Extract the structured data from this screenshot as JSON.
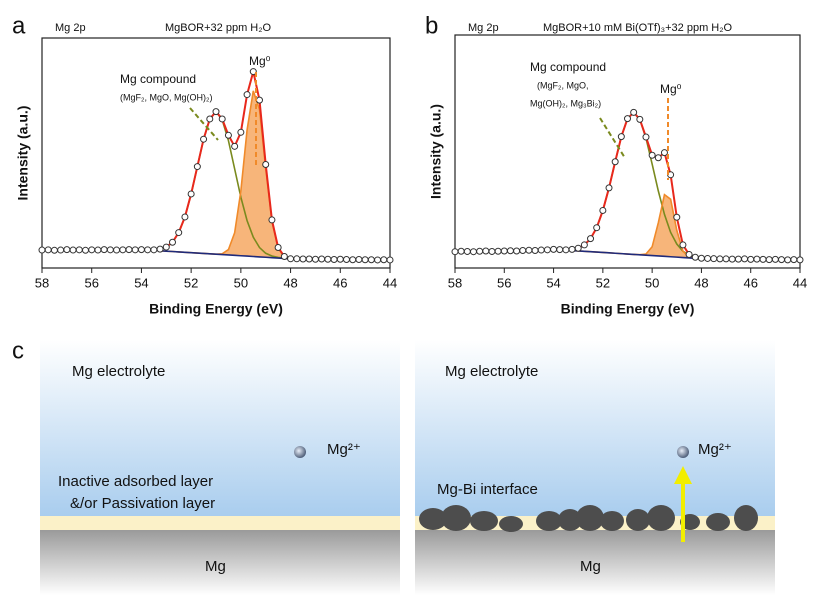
{
  "chart_data": [
    {
      "type": "scatter",
      "panel_label": "a",
      "label": "Mg 2p",
      "title": "MgBOR+32 ppm H₂O",
      "xlabel": "Binding Energy (eV)",
      "ylabel": "Intensity (a.u.)",
      "annotations": [
        "Mg compound",
        "(MgF₂, MgO, Mg(OH)₂)",
        "Mg⁰"
      ],
      "xlim": [
        58,
        44
      ],
      "xticks": [
        58,
        56,
        54,
        52,
        50,
        48,
        46,
        44
      ],
      "ylim": [
        0,
        100
      ],
      "x": [
        58,
        57.75,
        57.5,
        57.25,
        57,
        56.75,
        56.5,
        56.25,
        56,
        55.75,
        55.5,
        55.25,
        55,
        54.75,
        54.5,
        54.25,
        54,
        53.75,
        53.5,
        53.25,
        53,
        52.75,
        52.5,
        52.25,
        52,
        51.75,
        51.5,
        51.25,
        51,
        50.75,
        50.5,
        50.25,
        50,
        49.75,
        49.5,
        49.25,
        49,
        48.75,
        48.5,
        48.25,
        48,
        47.75,
        47.5,
        47.25,
        47,
        46.75,
        46.5,
        46.25,
        46,
        45.75,
        45.5,
        45.25,
        45,
        44.75,
        44.5,
        44.25,
        44
      ],
      "values": [
        7.8,
        7.9,
        7.7,
        7.8,
        8.0,
        7.8,
        7.9,
        7.7,
        7.9,
        7.8,
        8.0,
        7.9,
        7.8,
        7.9,
        8.0,
        7.9,
        8.0,
        7.9,
        7.9,
        8.2,
        9.1,
        11.2,
        15.4,
        22.2,
        32.2,
        44.1,
        56.0,
        64.8,
        68.0,
        64.8,
        57.7,
        52.9,
        59.0,
        75.4,
        85.4,
        73.0,
        45.0,
        20.9,
        8.9,
        5.0,
        4.0,
        4.0,
        3.9,
        3.9,
        3.8,
        3.9,
        3.8,
        3.7,
        3.8,
        3.7,
        3.6,
        3.7,
        3.6,
        3.6,
        3.5,
        3.6,
        3.5
      ],
      "marker_color": "#333333",
      "fit_x": [
        54,
        53.75,
        53.5,
        53.25,
        53,
        52.75,
        52.5,
        52.25,
        52,
        51.75,
        51.5,
        51.25,
        51,
        50.75,
        50.5,
        50.25,
        50,
        49.75,
        49.5,
        49.25,
        49,
        48.75,
        48.5,
        48.25,
        48
      ],
      "fits": [
        {
          "color": "#7a8a1e",
          "values": [
            8.0,
            7.9,
            7.9,
            8.2,
            9.1,
            11.2,
            15.4,
            22.2,
            32.2,
            44.1,
            56.0,
            64.8,
            68.0,
            64.4,
            55.4,
            43.1,
            30.8,
            20.6,
            13.4,
            8.9,
            6.4,
            5.2,
            4.6,
            4.2,
            4.0
          ]
        },
        {
          "color": "#f08a2a",
          "fill": "#f7b57a",
          "values": [
            8.0,
            7.83,
            7.67,
            7.5,
            7.33,
            7.17,
            7.0,
            6.83,
            6.67,
            6.5,
            6.33,
            6.17,
            6.0,
            6.2,
            8.0,
            15.3,
            33.5,
            60.0,
            77.0,
            68.9,
            43.3,
            20.2,
            8.6,
            5.0,
            4.0
          ]
        },
        {
          "color": "#1f2a7a",
          "values": [
            8.0,
            7.83,
            7.67,
            7.5,
            7.33,
            7.17,
            7.0,
            6.83,
            6.67,
            6.5,
            6.33,
            6.17,
            6.0,
            5.83,
            5.67,
            5.5,
            5.33,
            5.17,
            5.0,
            4.83,
            4.67,
            4.5,
            4.33,
            4.17,
            4.0
          ]
        },
        {
          "color": "#e8281c",
          "values": [
            8.0,
            7.9,
            7.9,
            8.2,
            9.1,
            11.2,
            15.4,
            22.2,
            32.2,
            44.1,
            56.0,
            64.8,
            68.0,
            64.8,
            57.7,
            52.9,
            59.0,
            75.4,
            85.4,
            73.0,
            45.0,
            20.9,
            8.9,
            5.0,
            4.0
          ]
        }
      ]
    },
    {
      "type": "scatter",
      "panel_label": "b",
      "label": "Mg 2p",
      "title": "MgBOR+10 mM Bi(OTf)₃+32 ppm H₂O",
      "xlabel": "Binding Energy (eV)",
      "ylabel": "Intensity (a.u.)",
      "annotations": [
        "Mg compound",
        "(MgF₂, MgO,",
        "Mg(OH)₂, Mg₃Bi₂)",
        "Mg⁰"
      ],
      "xlim": [
        58,
        44
      ],
      "xticks": [
        58,
        56,
        54,
        52,
        50,
        48,
        46,
        44
      ],
      "ylim": [
        0,
        100
      ],
      "x": [
        58,
        57.75,
        57.5,
        57.25,
        57,
        56.75,
        56.5,
        56.25,
        56,
        55.75,
        55.5,
        55.25,
        55,
        54.75,
        54.5,
        54.25,
        54,
        53.75,
        53.5,
        53.25,
        53,
        52.75,
        52.5,
        52.25,
        52,
        51.75,
        51.5,
        51.25,
        51,
        50.75,
        50.5,
        50.25,
        50,
        49.75,
        49.5,
        49.25,
        49,
        48.75,
        48.5,
        48.25,
        48,
        47.75,
        47.5,
        47.25,
        47,
        46.75,
        46.5,
        46.25,
        46,
        45.75,
        45.5,
        45.25,
        45,
        44.75,
        44.5,
        44.25,
        44
      ],
      "values": [
        7.0,
        7.2,
        7.1,
        7.0,
        7.2,
        7.3,
        7.1,
        7.2,
        7.3,
        7.4,
        7.3,
        7.5,
        7.6,
        7.5,
        7.7,
        7.8,
        8.0,
        7.9,
        7.8,
        8.0,
        8.5,
        9.9,
        12.6,
        17.3,
        24.7,
        34.4,
        45.6,
        56.4,
        64.1,
        66.8,
        63.8,
        56.2,
        48.4,
        47.3,
        49.5,
        40.0,
        21.8,
        9.9,
        5.8,
        4.6,
        4.2,
        4.1,
        4.0,
        3.9,
        3.9,
        3.8,
        3.8,
        3.9,
        3.7,
        3.8,
        3.7,
        3.6,
        3.7,
        3.6,
        3.5,
        3.6,
        3.5
      ],
      "marker_color": "#333333",
      "fit_x": [
        54,
        53.75,
        53.5,
        53.25,
        53,
        52.75,
        52.5,
        52.25,
        52,
        51.75,
        51.5,
        51.25,
        51,
        50.75,
        50.5,
        50.25,
        50,
        49.75,
        49.5,
        49.25,
        49,
        48.75,
        48.5,
        48.25,
        48
      ],
      "fits": [
        {
          "color": "#7a8a1e",
          "values": [
            8.0,
            7.9,
            7.8,
            8.0,
            8.5,
            9.9,
            12.6,
            17.3,
            24.7,
            34.4,
            45.6,
            56.4,
            64.1,
            66.8,
            63.8,
            55.7,
            44.6,
            33.1,
            23.0,
            15.3,
            10.3,
            7.2,
            5.5,
            4.6,
            4.2
          ]
        },
        {
          "color": "#f08a2a",
          "fill": "#f7b57a",
          "values": [
            8.0,
            7.83,
            7.67,
            7.5,
            7.33,
            7.17,
            7.0,
            6.83,
            6.67,
            6.5,
            6.33,
            6.17,
            6.0,
            5.83,
            5.7,
            6.0,
            9.1,
            19.4,
            31.5,
            29.5,
            16.2,
            7.2,
            4.6,
            4.2,
            4.0
          ]
        },
        {
          "color": "#1f2a7a",
          "values": [
            8.0,
            7.83,
            7.67,
            7.5,
            7.33,
            7.17,
            7.0,
            6.83,
            6.67,
            6.5,
            6.33,
            6.17,
            6.0,
            5.83,
            5.67,
            5.5,
            5.33,
            5.17,
            5.0,
            4.83,
            4.67,
            4.5,
            4.33,
            4.17,
            4.0
          ]
        },
        {
          "color": "#e8281c",
          "values": [
            8.0,
            7.9,
            7.8,
            8.0,
            8.5,
            9.9,
            12.6,
            17.3,
            24.7,
            34.4,
            45.6,
            56.4,
            64.1,
            66.8,
            63.8,
            56.2,
            48.4,
            47.3,
            49.5,
            40.0,
            21.8,
            9.9,
            5.8,
            4.6,
            4.2
          ]
        }
      ]
    }
  ],
  "panel_c": {
    "panel_label": "c",
    "left": {
      "electrolyte": "Mg electrolyte",
      "ion": "Mg²⁺",
      "layer_1": "Inactive adsorbed layer",
      "layer_2": "&/or Passivation layer",
      "metal": "Mg"
    },
    "right": {
      "electrolyte": "Mg electrolyte",
      "ion": "Mg²⁺",
      "interface": "Mg-Bi interface",
      "metal": "Mg"
    }
  }
}
